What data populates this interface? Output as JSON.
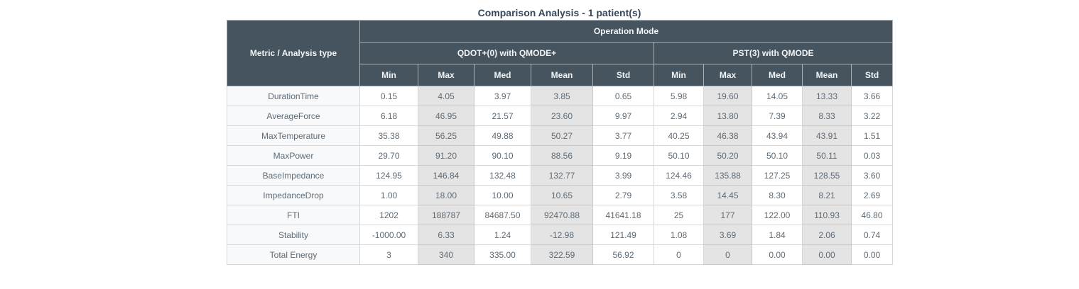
{
  "title": "Comparison Analysis - 1 patient(s)",
  "colors": {
    "header_bg": "#45545f",
    "header_text": "#f2f4f5",
    "title_text": "#36495c",
    "cell_text": "#5e6b76",
    "metric_col_bg": "#f7f9fa",
    "shaded_col_bg": "#e4e4e4"
  },
  "table": {
    "corner_header": "Metric / Analysis type",
    "top_header": "Operation Mode",
    "groups": [
      {
        "label": "QDOT+(0) with QMODE+",
        "stats": [
          "Min",
          "Max",
          "Med",
          "Mean",
          "Std"
        ]
      },
      {
        "label": "PST(3) with QMODE",
        "stats": [
          "Min",
          "Max",
          "Med",
          "Mean",
          "Std"
        ]
      }
    ],
    "rows": [
      {
        "metric": "DurationTime",
        "values": [
          "0.15",
          "4.05",
          "3.97",
          "3.85",
          "0.65",
          "5.98",
          "19.60",
          "14.05",
          "13.33",
          "3.66"
        ]
      },
      {
        "metric": "AverageForce",
        "values": [
          "6.18",
          "46.95",
          "21.57",
          "23.60",
          "9.97",
          "2.94",
          "13.80",
          "7.39",
          "8.33",
          "3.22"
        ]
      },
      {
        "metric": "MaxTemperature",
        "values": [
          "35.38",
          "56.25",
          "49.88",
          "50.27",
          "3.77",
          "40.25",
          "46.38",
          "43.94",
          "43.91",
          "1.51"
        ]
      },
      {
        "metric": "MaxPower",
        "values": [
          "29.70",
          "91.20",
          "90.10",
          "88.56",
          "9.19",
          "50.10",
          "50.20",
          "50.10",
          "50.11",
          "0.03"
        ]
      },
      {
        "metric": "BaseImpedance",
        "values": [
          "124.95",
          "146.84",
          "132.48",
          "132.77",
          "3.99",
          "124.46",
          "135.88",
          "127.25",
          "128.55",
          "3.60"
        ]
      },
      {
        "metric": "ImpedanceDrop",
        "values": [
          "1.00",
          "18.00",
          "10.00",
          "10.65",
          "2.79",
          "3.58",
          "14.45",
          "8.30",
          "8.21",
          "2.69"
        ]
      },
      {
        "metric": "FTI",
        "values": [
          "1202",
          "188787",
          "84687.50",
          "92470.88",
          "41641.18",
          "25",
          "177",
          "122.00",
          "110.93",
          "46.80"
        ]
      },
      {
        "metric": "Stability",
        "values": [
          "-1000.00",
          "6.33",
          "1.24",
          "-12.98",
          "121.49",
          "1.08",
          "3.69",
          "1.84",
          "2.06",
          "0.74"
        ]
      },
      {
        "metric": "Total Energy",
        "values": [
          "3",
          "340",
          "335.00",
          "322.59",
          "56.92",
          "0",
          "0",
          "0.00",
          "0.00",
          "0.00"
        ]
      }
    ]
  }
}
